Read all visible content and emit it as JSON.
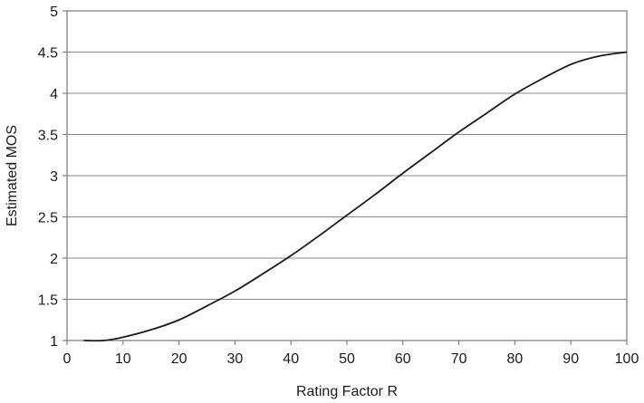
{
  "chart_data": {
    "type": "line",
    "title": "",
    "xlabel": "Rating Factor R",
    "ylabel": "Estimated MOS",
    "xlim": [
      0,
      100
    ],
    "ylim": [
      1,
      5
    ],
    "x_ticks": [
      0,
      10,
      20,
      30,
      40,
      50,
      60,
      70,
      80,
      90,
      100
    ],
    "y_ticks": [
      1,
      1.5,
      2,
      2.5,
      3,
      3.5,
      4,
      4.5,
      5
    ],
    "x_tick_labels": [
      "0",
      "10",
      "20",
      "30",
      "40",
      "50",
      "60",
      "70",
      "80",
      "90",
      "100"
    ],
    "y_tick_labels": [
      "1",
      "1.5",
      "2",
      "2.5",
      "3",
      "3.5",
      "4",
      "4.5",
      "5"
    ],
    "grid": "horizontal",
    "legend": "none",
    "line_color": "#1a1a1a",
    "series": [
      {
        "x": [
          3,
          6.5,
          10,
          15,
          20,
          25,
          30,
          35,
          40,
          45,
          50,
          55,
          60,
          65,
          70,
          75,
          80,
          85,
          90,
          95,
          100
        ],
        "values": [
          1.0,
          1.0,
          1.04,
          1.13,
          1.25,
          1.42,
          1.6,
          1.81,
          2.03,
          2.27,
          2.52,
          2.77,
          3.03,
          3.28,
          3.53,
          3.76,
          3.99,
          4.18,
          4.35,
          4.45,
          4.5
        ]
      }
    ]
  }
}
